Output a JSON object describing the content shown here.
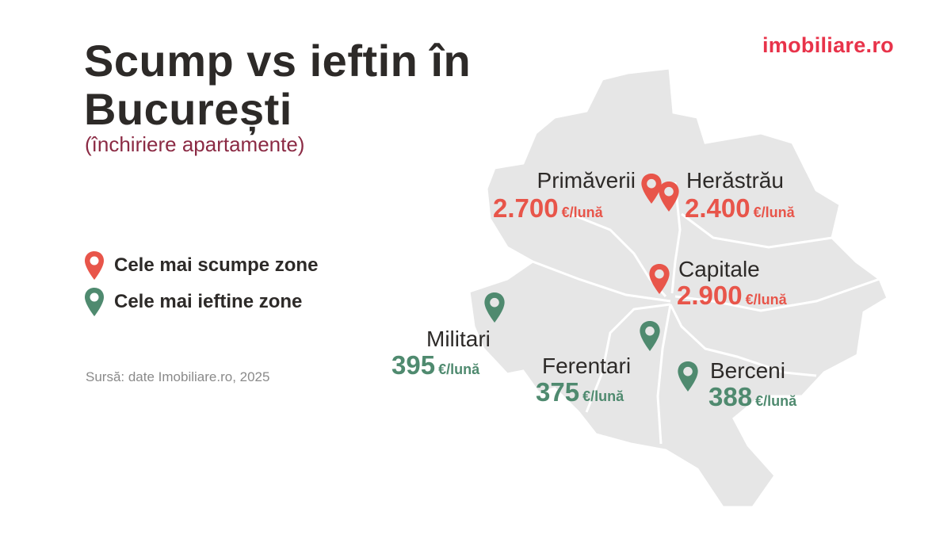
{
  "title_line1": "Scump vs ieftin în",
  "title_line2": "București",
  "subtitle": "(închiriere apartamente)",
  "logo": "imobiliare.ro",
  "legend": [
    {
      "label": "Cele mai scumpe zone",
      "color": "#e8554a"
    },
    {
      "label": "Cele mai ieftine zone",
      "color": "#4f8a6f"
    }
  ],
  "source": "Sursă: date Imobiliare.ro, 2025",
  "colors": {
    "expensive": "#e8554a",
    "cheap": "#4f8a6f",
    "map": "#e6e6e6",
    "title": "#2d2a28",
    "subtitle": "#8b2a44",
    "brand": "#e8334a"
  },
  "zones": [
    {
      "name": "Primăverii",
      "price": "2.700",
      "unit": "€/lună",
      "type": "expensive"
    },
    {
      "name": "Herăstrău",
      "price": "2.400",
      "unit": "€/lună",
      "type": "expensive"
    },
    {
      "name": "Capitale",
      "price": "2.900",
      "unit": "€/lună",
      "type": "expensive"
    },
    {
      "name": "Militari",
      "price": "395",
      "unit": "€/lună",
      "type": "cheap"
    },
    {
      "name": "Ferentari",
      "price": "375",
      "unit": "€/lună",
      "type": "cheap"
    },
    {
      "name": "Berceni",
      "price": "388",
      "unit": "€/lună",
      "type": "cheap"
    }
  ]
}
